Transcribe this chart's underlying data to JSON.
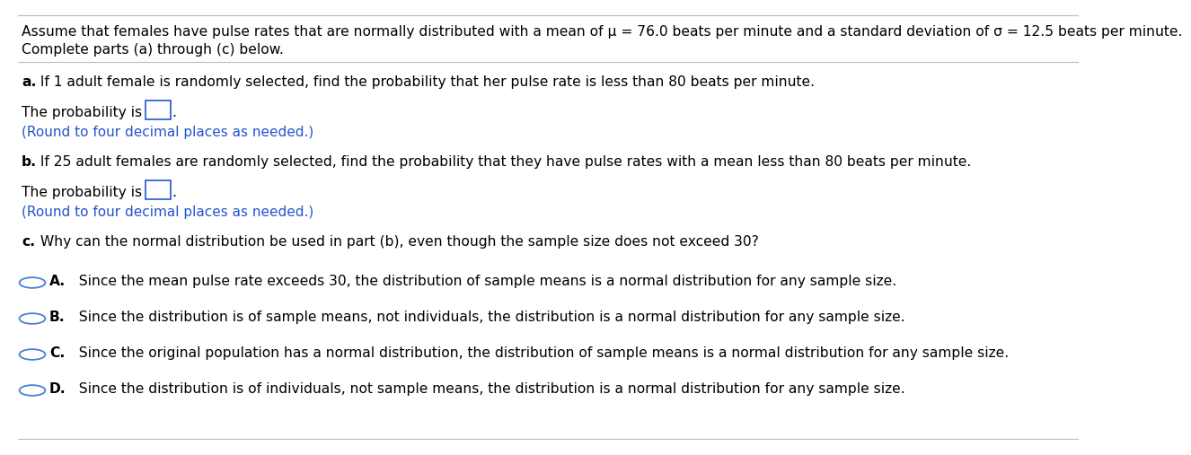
{
  "bg_color": "#ffffff",
  "text_color": "#000000",
  "blue_color": "#2255cc",
  "circle_color": "#4a7fd4",
  "header_line1": "Assume that females have pulse rates that are normally distributed with a mean of μ = 76.0 beats per minute and a standard deviation of σ = 12.5 beats per minute.",
  "header_line2": "Complete parts (a) through (c) below.",
  "part_a_bold": "a.",
  "part_a_rest": " If 1 adult female is randomly selected, find the probability that her pulse rate is less than 80 beats per minute.",
  "prob_is": "The probability is",
  "round_note": "(Round to four decimal places as needed.)",
  "part_b_bold": "b.",
  "part_b_rest": " If 25 adult females are randomly selected, find the probability that they have pulse rates with a mean less than 80 beats per minute.",
  "part_c_bold": "c.",
  "part_c_rest": " Why can the normal distribution be used in part (b), even though the sample size does not exceed 30?",
  "opt_letters": [
    "A.",
    "B.",
    "C.",
    "D."
  ],
  "opt_texts": [
    "  Since the mean pulse rate exceeds 30, the distribution of sample means is a normal distribution for any sample size.",
    "  Since the distribution is of sample means, not individuals, the distribution is a normal distribution for any sample size.",
    "  Since the original population has a normal distribution, the distribution of sample means is a normal distribution for any sample size.",
    "  Since the distribution is of individuals, not sample means, the distribution is a normal distribution for any sample size."
  ],
  "font_size": 11.2,
  "font_size_blue": 11.0
}
